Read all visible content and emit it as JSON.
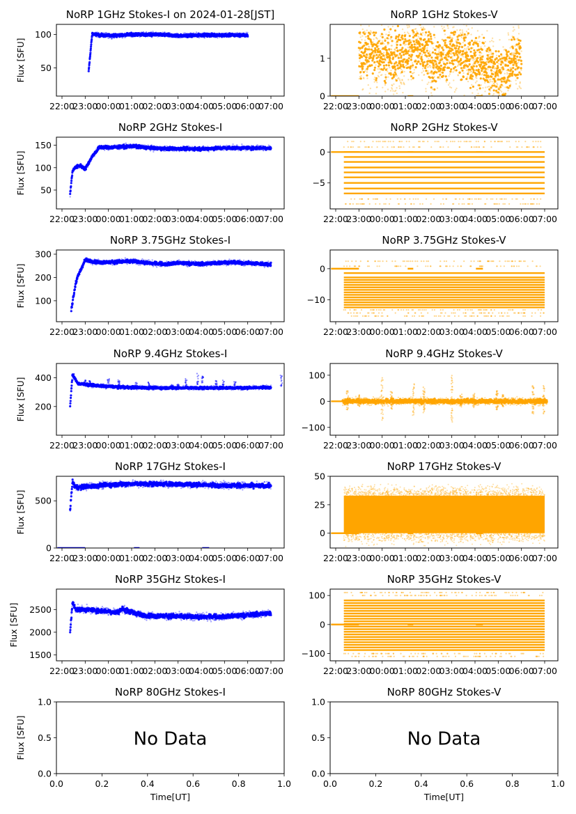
{
  "chart_data": {
    "type": "scatter",
    "date_label": "2024-01-28[JST]",
    "ylabel": "Flux [SFU]",
    "xlabel_last_row": "Time[UT]",
    "time_ticks": [
      "22:00",
      "23:00",
      "00:00",
      "01:00",
      "02:00",
      "03:00",
      "04:00",
      "05:00",
      "06:00",
      "07:00"
    ],
    "xlim_hours": [
      -0.24,
      9.57
    ],
    "stokes_i_color": "#0000ff",
    "stokes_v_color": "#ffa500",
    "panels": [
      {
        "id": "1ghz-i",
        "title": "NoRP 1GHz Stokes-I on 2024-01-28[JST]",
        "stokes": "I",
        "ylim": [
          8,
          115
        ],
        "yticks": [
          50,
          100
        ],
        "ylabel": "Flux [SFU]",
        "curve": [
          [
            1.15,
            45
          ],
          [
            1.3,
            101
          ],
          [
            1.6,
            99
          ],
          [
            2.2,
            98
          ],
          [
            3.0,
            100
          ],
          [
            4.0,
            100
          ],
          [
            5.0,
            98
          ],
          [
            6.0,
            99
          ],
          [
            7.0,
            99
          ],
          [
            8.0,
            99
          ]
        ],
        "spread": 1.5
      },
      {
        "id": "1ghz-v",
        "title": "NoRP 1GHz Stokes-V",
        "stokes": "V",
        "ylim": [
          0,
          1.9
        ],
        "yticks": [
          0,
          1
        ],
        "curve": [
          [
            1.0,
            1.1
          ],
          [
            1.5,
            1.2
          ],
          [
            2.5,
            1.0
          ],
          [
            3.5,
            1.3
          ],
          [
            4.3,
            0.8
          ],
          [
            5.0,
            1.3
          ],
          [
            6.0,
            0.9
          ],
          [
            7.3,
            0.6
          ],
          [
            7.8,
            1.1
          ],
          [
            8.0,
            1.1
          ]
        ],
        "spread": 0.45,
        "baseline": 0
      },
      {
        "id": "2ghz-i",
        "title": "NoRP 2GHz Stokes-I",
        "stokes": "I",
        "ylim": [
          8,
          168
        ],
        "yticks": [
          50,
          100,
          150
        ],
        "ylabel": "Flux [SFU]",
        "curve": [
          [
            0.35,
            40
          ],
          [
            0.45,
            92
          ],
          [
            0.6,
            102
          ],
          [
            0.8,
            104
          ],
          [
            1.0,
            97
          ],
          [
            1.3,
            125
          ],
          [
            1.6,
            145
          ],
          [
            2.5,
            146
          ],
          [
            3.0,
            148
          ],
          [
            4.0,
            143
          ],
          [
            5.0,
            142
          ],
          [
            6.0,
            142
          ],
          [
            7.0,
            144
          ],
          [
            8.0,
            144
          ],
          [
            9.0,
            144
          ]
        ],
        "spread": 2.5
      },
      {
        "id": "2ghz-v",
        "title": "NoRP 2GHz Stokes-V",
        "stokes": "V",
        "ylim": [
          -9.2,
          2.4
        ],
        "yticks": [
          -5,
          0
        ],
        "levels": [
          0,
          -0.8,
          -1.6,
          -2.5,
          -3.3,
          -4.1,
          -5.0,
          -5.9,
          -6.7
        ],
        "sparse_levels": [
          1.7,
          0.8,
          -7.6,
          -8.4
        ],
        "baseline": 0
      },
      {
        "id": "375ghz-i",
        "title": "NoRP 3.75GHz Stokes-I",
        "stokes": "I",
        "ylim": [
          10,
          318
        ],
        "yticks": [
          100,
          200,
          300
        ],
        "ylabel": "Flux [SFU]",
        "curve": [
          [
            0.4,
            62
          ],
          [
            0.6,
            180
          ],
          [
            0.75,
            220
          ],
          [
            1.0,
            275
          ],
          [
            1.5,
            266
          ],
          [
            2.0,
            265
          ],
          [
            3.0,
            270
          ],
          [
            4.0,
            260
          ],
          [
            4.5,
            257
          ],
          [
            5.0,
            262
          ],
          [
            6.0,
            258
          ],
          [
            7.0,
            265
          ],
          [
            8.0,
            262
          ],
          [
            9.0,
            256
          ]
        ],
        "spread": 5
      },
      {
        "id": "375ghz-v",
        "title": "NoRP 3.75GHz Stokes-V",
        "stokes": "V",
        "ylim": [
          -17,
          6
        ],
        "yticks": [
          -10,
          0
        ],
        "levels": [
          -1.4,
          -2.8,
          -3.6,
          -4.4,
          -5.2,
          -6.0,
          -6.8,
          -7.6,
          -8.4,
          -9.2,
          -10.0,
          -10.8,
          -11.6,
          -12.4
        ],
        "sparse_levels": [
          2.4,
          0.8,
          -13.2,
          -14.2,
          -15.2
        ],
        "baseline": 0
      },
      {
        "id": "94ghz-i",
        "title": "NoRP 9.4GHz Stokes-I",
        "stokes": "I",
        "ylim": [
          0,
          500
        ],
        "yticks": [
          200,
          400
        ],
        "ylabel": "Flux [SFU]",
        "curve": [
          [
            0.35,
            200
          ],
          [
            0.45,
            420
          ],
          [
            0.7,
            360
          ],
          [
            1.5,
            345
          ],
          [
            2.5,
            335
          ],
          [
            4.0,
            330
          ],
          [
            6.0,
            330
          ],
          [
            8.0,
            330
          ],
          [
            9.0,
            335
          ]
        ],
        "spread": 6,
        "spikes": [
          [
            0.5,
            430
          ],
          [
            1.0,
            385
          ],
          [
            1.2,
            380
          ],
          [
            2.0,
            395
          ],
          [
            2.45,
            390
          ],
          [
            3.2,
            370
          ],
          [
            3.75,
            370
          ],
          [
            4.75,
            360
          ],
          [
            5.0,
            355
          ],
          [
            5.35,
            405
          ],
          [
            5.85,
            440
          ],
          [
            6.05,
            420
          ],
          [
            6.65,
            380
          ],
          [
            6.95,
            385
          ],
          [
            7.45,
            375
          ],
          [
            9.45,
            420
          ],
          [
            9.95,
            420
          ]
        ]
      },
      {
        "id": "94ghz-v",
        "title": "NoRP 9.4GHz Stokes-V",
        "stokes": "V",
        "ylim": [
          -130,
          145
        ],
        "yticks": [
          -100,
          0,
          100
        ],
        "curve": [
          [
            0.3,
            0
          ],
          [
            9.1,
            0
          ]
        ],
        "spread": 6,
        "spikes": [
          [
            0.5,
            40
          ],
          [
            1.0,
            25
          ],
          [
            2.0,
            90
          ],
          [
            2.4,
            40
          ],
          [
            3.35,
            70
          ],
          [
            3.8,
            60
          ],
          [
            5.0,
            100
          ],
          [
            5.4,
            30
          ],
          [
            5.95,
            30
          ],
          [
            6.95,
            40
          ],
          [
            7.2,
            30
          ],
          [
            8.5,
            60
          ],
          [
            8.95,
            60
          ]
        ],
        "baseline": 0
      },
      {
        "id": "17ghz-i",
        "title": "NoRP 17GHz Stokes-I",
        "stokes": "I",
        "ylim": [
          0,
          760
        ],
        "yticks": [
          0,
          500
        ],
        "ylabel": "Flux [SFU]",
        "curve": [
          [
            0.35,
            400
          ],
          [
            0.45,
            700
          ],
          [
            0.6,
            640
          ],
          [
            1.0,
            650
          ],
          [
            2.0,
            670
          ],
          [
            3.0,
            680
          ],
          [
            4.0,
            680
          ],
          [
            5.0,
            675
          ],
          [
            6.0,
            670
          ],
          [
            7.0,
            665
          ],
          [
            8.0,
            660
          ],
          [
            9.0,
            660
          ]
        ],
        "spread": 16,
        "baseline": 0
      },
      {
        "id": "17ghz-v",
        "title": "NoRP 17GHz Stokes-V",
        "stokes": "V",
        "ylim": [
          -13,
          50
        ],
        "yticks": [
          0,
          25,
          50
        ],
        "band": [
          0,
          33
        ],
        "spread": 6,
        "baseline": 0
      },
      {
        "id": "35ghz-i",
        "title": "NoRP 35GHz Stokes-I",
        "stokes": "I",
        "ylim": [
          1370,
          2950
        ],
        "yticks": [
          1500,
          2000,
          2500
        ],
        "ylabel": "Flux [SFU]",
        "curve": [
          [
            0.35,
            2000
          ],
          [
            0.45,
            2650
          ],
          [
            0.6,
            2500
          ],
          [
            1.0,
            2500
          ],
          [
            2.0,
            2460
          ],
          [
            2.4,
            2440
          ],
          [
            2.6,
            2510
          ],
          [
            3.0,
            2440
          ],
          [
            3.5,
            2370
          ],
          [
            4.0,
            2360
          ],
          [
            5.0,
            2350
          ],
          [
            6.0,
            2340
          ],
          [
            7.0,
            2340
          ],
          [
            8.0,
            2380
          ],
          [
            9.0,
            2420
          ]
        ],
        "spread": 35
      },
      {
        "id": "35ghz-v",
        "title": "NoRP 35GHz Stokes-V",
        "stokes": "V",
        "ylim": [
          -125,
          122
        ],
        "yticks": [
          -100,
          0,
          100
        ],
        "levels_step": 9,
        "levels_range": [
          -88,
          88
        ],
        "sparse_levels": [
          100,
          -100,
          110,
          -110
        ],
        "baseline": 0
      },
      {
        "id": "80ghz-i",
        "title": "NoRP 80GHz Stokes-I",
        "stokes": "I",
        "nodata": true,
        "nodata_text": "No Data",
        "ylabel": "Flux [SFU]",
        "ylim": [
          0,
          1
        ],
        "yticks": [
          "0.0",
          "0.5",
          "1.0"
        ],
        "xticks": [
          "0.0",
          "0.2",
          "0.4",
          "0.6",
          "0.8",
          "1.0"
        ],
        "xlabel": "Time[UT]"
      },
      {
        "id": "80ghz-v",
        "title": "NoRP 80GHz Stokes-V",
        "stokes": "V",
        "nodata": true,
        "nodata_text": "No Data",
        "ylim": [
          0,
          1
        ],
        "yticks": [
          "0.0",
          "0.5",
          "1.0"
        ],
        "xticks": [
          "0.0",
          "0.2",
          "0.4",
          "0.6",
          "0.8",
          "1.0"
        ],
        "xlabel": "Time[UT]"
      }
    ]
  }
}
